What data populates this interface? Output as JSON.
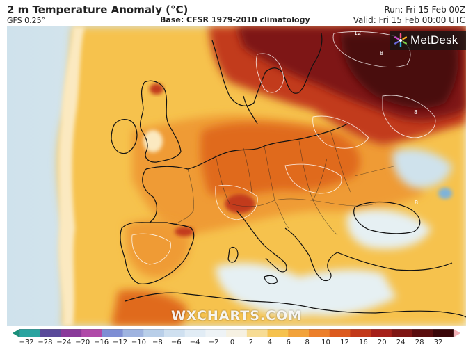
{
  "header": {
    "title": "2 m Temperature Anomaly (°C)",
    "model": "GFS 0.25°",
    "base": "Base: CFSR 1979-2010 climatology",
    "run": "Run: Fri 15 Feb 00Z",
    "valid": "Valid: Fri 15 Feb 00:00 UTC"
  },
  "logo": {
    "text": "MetDesk",
    "icon": "metdesk-logo-icon"
  },
  "watermark": "WXCHARTS.COM",
  "contour_labels": {
    "a": "12",
    "b": "8",
    "c": "8",
    "d": "8"
  },
  "colorbar": {
    "ticks": [
      "−32",
      "−28",
      "−24",
      "−20",
      "−16",
      "−12",
      "−10",
      "−8",
      "−6",
      "−4",
      "−2",
      "0",
      "2",
      "4",
      "6",
      "8",
      "10",
      "12",
      "16",
      "20",
      "24",
      "28",
      "32"
    ],
    "colors": [
      "#1a8f7a",
      "#2aa4a0",
      "#5a4a9a",
      "#8a3a9a",
      "#b04aa8",
      "#7e8ed4",
      "#9fb4e0",
      "#b9cfe9",
      "#cfe0f0",
      "#e1ecf5",
      "#eef3f6",
      "#f6f1e2",
      "#f7dc94",
      "#f6c24e",
      "#f2a23a",
      "#ec7f2a",
      "#dc5a1e",
      "#c2391a",
      "#a5201a",
      "#7e1614",
      "#5a0d0e",
      "#3a0608",
      "#f3b2b8"
    ]
  },
  "map": {
    "colors": {
      "sea_cold": "#cfe2ec",
      "sea_cool": "#e6f0f3",
      "mild": "#fbe9c0",
      "warm": "#f6c24e",
      "warmer": "#ef9b35",
      "hot": "#e06a1e",
      "hotter": "#c23a1a",
      "hottest": "#7e1614",
      "darkest": "#4a0a0c",
      "coast": "#111111"
    }
  }
}
